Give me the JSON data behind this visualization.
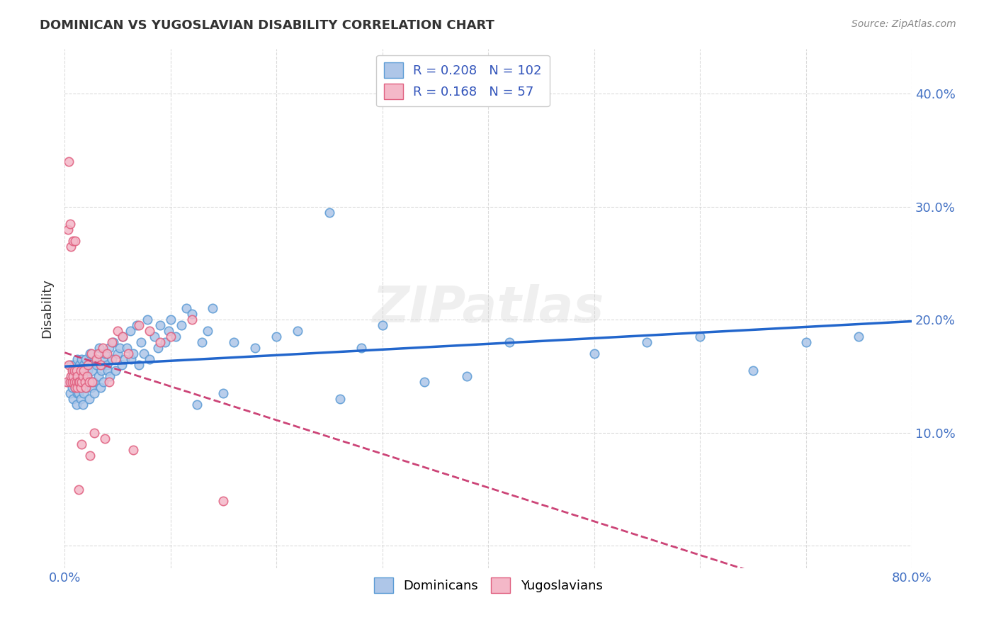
{
  "title": "DOMINICAN VS YUGOSLAVIAN DISABILITY CORRELATION CHART",
  "source": "Source: ZipAtlas.com",
  "ylabel": "Disability",
  "watermark": "ZIPatlas",
  "xlim": [
    0.0,
    0.8
  ],
  "ylim": [
    -0.02,
    0.44
  ],
  "dominican_color": "#aec6e8",
  "dominican_edge": "#5b9bd5",
  "yugoslavian_color": "#f4b8c8",
  "yugoslavian_edge": "#e06080",
  "trendline_dominican_color": "#2266cc",
  "trendline_yugoslavian_color": "#cc4477",
  "R_dominican": 0.208,
  "N_dominican": 102,
  "R_yugoslavian": 0.168,
  "N_yugoslavian": 57,
  "dominican_x": [
    0.003,
    0.005,
    0.006,
    0.007,
    0.007,
    0.008,
    0.008,
    0.009,
    0.009,
    0.01,
    0.01,
    0.011,
    0.011,
    0.012,
    0.012,
    0.013,
    0.013,
    0.013,
    0.014,
    0.014,
    0.015,
    0.015,
    0.016,
    0.016,
    0.017,
    0.017,
    0.018,
    0.018,
    0.019,
    0.02,
    0.02,
    0.021,
    0.022,
    0.023,
    0.024,
    0.025,
    0.026,
    0.027,
    0.028,
    0.029,
    0.03,
    0.032,
    0.033,
    0.034,
    0.035,
    0.036,
    0.037,
    0.038,
    0.04,
    0.041,
    0.042,
    0.043,
    0.045,
    0.046,
    0.048,
    0.05,
    0.052,
    0.054,
    0.055,
    0.057,
    0.059,
    0.062,
    0.063,
    0.065,
    0.068,
    0.07,
    0.072,
    0.075,
    0.078,
    0.08,
    0.085,
    0.088,
    0.09,
    0.095,
    0.098,
    0.1,
    0.105,
    0.11,
    0.115,
    0.12,
    0.125,
    0.13,
    0.135,
    0.14,
    0.15,
    0.16,
    0.18,
    0.2,
    0.22,
    0.25,
    0.26,
    0.28,
    0.3,
    0.34,
    0.38,
    0.42,
    0.5,
    0.55,
    0.6,
    0.65,
    0.7,
    0.75
  ],
  "dominican_y": [
    0.145,
    0.135,
    0.16,
    0.14,
    0.15,
    0.155,
    0.13,
    0.145,
    0.16,
    0.14,
    0.15,
    0.125,
    0.155,
    0.135,
    0.165,
    0.14,
    0.15,
    0.135,
    0.145,
    0.16,
    0.155,
    0.13,
    0.165,
    0.14,
    0.15,
    0.125,
    0.16,
    0.135,
    0.145,
    0.165,
    0.14,
    0.15,
    0.155,
    0.13,
    0.17,
    0.14,
    0.155,
    0.145,
    0.135,
    0.165,
    0.16,
    0.15,
    0.175,
    0.14,
    0.155,
    0.165,
    0.145,
    0.17,
    0.16,
    0.155,
    0.175,
    0.15,
    0.165,
    0.18,
    0.155,
    0.17,
    0.175,
    0.16,
    0.185,
    0.165,
    0.175,
    0.19,
    0.165,
    0.17,
    0.195,
    0.16,
    0.18,
    0.17,
    0.2,
    0.165,
    0.185,
    0.175,
    0.195,
    0.18,
    0.19,
    0.2,
    0.185,
    0.195,
    0.21,
    0.205,
    0.125,
    0.18,
    0.19,
    0.21,
    0.135,
    0.18,
    0.175,
    0.185,
    0.19,
    0.295,
    0.13,
    0.175,
    0.195,
    0.145,
    0.15,
    0.18,
    0.17,
    0.18,
    0.185,
    0.155,
    0.18,
    0.185
  ],
  "yugoslavian_x": [
    0.002,
    0.003,
    0.004,
    0.004,
    0.005,
    0.005,
    0.006,
    0.006,
    0.007,
    0.007,
    0.008,
    0.008,
    0.009,
    0.009,
    0.01,
    0.01,
    0.011,
    0.011,
    0.012,
    0.012,
    0.013,
    0.013,
    0.014,
    0.015,
    0.015,
    0.016,
    0.016,
    0.017,
    0.018,
    0.019,
    0.02,
    0.021,
    0.022,
    0.023,
    0.024,
    0.025,
    0.026,
    0.028,
    0.03,
    0.032,
    0.034,
    0.036,
    0.038,
    0.04,
    0.042,
    0.045,
    0.048,
    0.05,
    0.055,
    0.06,
    0.065,
    0.07,
    0.08,
    0.09,
    0.1,
    0.12,
    0.15
  ],
  "yugoslavian_y": [
    0.145,
    0.28,
    0.16,
    0.34,
    0.145,
    0.285,
    0.15,
    0.265,
    0.145,
    0.155,
    0.27,
    0.15,
    0.145,
    0.155,
    0.14,
    0.27,
    0.145,
    0.155,
    0.14,
    0.15,
    0.145,
    0.05,
    0.145,
    0.14,
    0.155,
    0.145,
    0.09,
    0.15,
    0.155,
    0.145,
    0.14,
    0.15,
    0.16,
    0.145,
    0.08,
    0.17,
    0.145,
    0.1,
    0.165,
    0.17,
    0.16,
    0.175,
    0.095,
    0.17,
    0.145,
    0.18,
    0.165,
    0.19,
    0.185,
    0.17,
    0.085,
    0.195,
    0.19,
    0.18,
    0.185,
    0.2,
    0.04
  ]
}
